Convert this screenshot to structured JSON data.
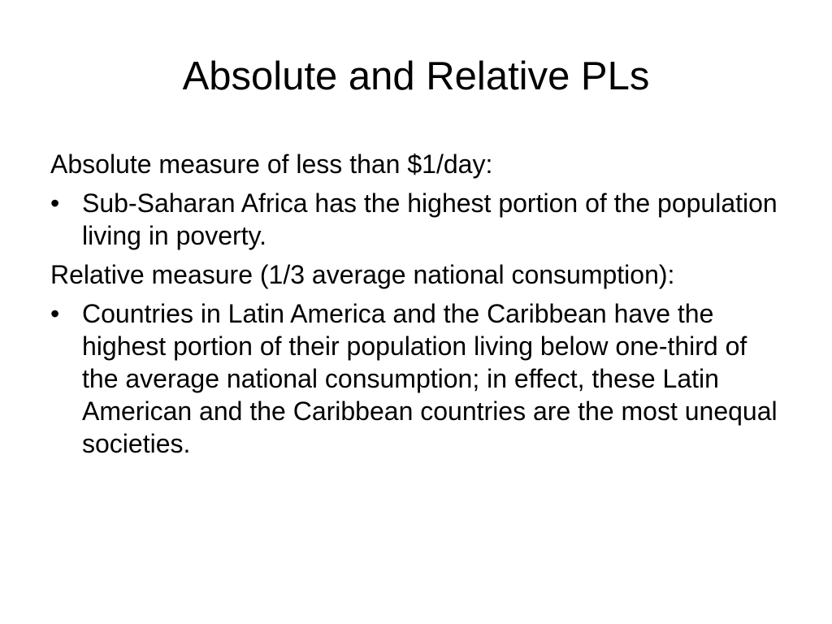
{
  "slide": {
    "title": "Absolute and Relative PLs",
    "sections": [
      {
        "heading": "Absolute measure of less than $1/day:",
        "bullets": [
          "Sub-Saharan Africa has the highest portion of the population living in poverty."
        ]
      },
      {
        "heading": "Relative measure (1/3 average national consumption):",
        "bullets": [
          "Countries in Latin America and the Caribbean have the highest portion of their population living below one-third of the average national consumption; in effect, these Latin American and the Caribbean countries are the most unequal societies."
        ]
      }
    ],
    "bullet_glyph": "•"
  }
}
